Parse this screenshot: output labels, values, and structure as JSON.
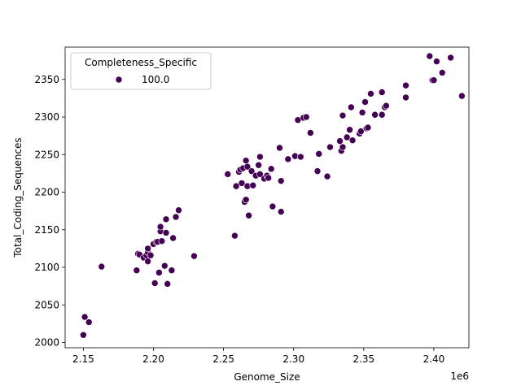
{
  "chart_data": {
    "type": "scatter",
    "title": "",
    "xlabel": "Genome_Size",
    "ylabel": "Total_Coding_Sequences",
    "x_offset_label": "1e6",
    "xlim": [
      2.137,
      2.425
    ],
    "ylim": [
      1993,
      2393
    ],
    "x_ticks": [
      2.15,
      2.2,
      2.25,
      2.3,
      2.35,
      2.4
    ],
    "x_tick_labels": [
      "2.15",
      "2.20",
      "2.25",
      "2.30",
      "2.35",
      "2.40"
    ],
    "y_ticks": [
      2000,
      2050,
      2100,
      2150,
      2200,
      2250,
      2300,
      2350
    ],
    "y_tick_labels": [
      "2000",
      "2050",
      "2100",
      "2150",
      "2200",
      "2250",
      "2300",
      "2350"
    ],
    "grid": false,
    "legend": {
      "title": "Completeness_Specific",
      "placement": "top-left",
      "entries": [
        {
          "label": "100.0",
          "color": "#440154"
        }
      ]
    },
    "series": [
      {
        "name": "100.0",
        "color": "#440154",
        "points": [
          [
            2.15,
            2010
          ],
          [
            2.151,
            2034
          ],
          [
            2.154,
            2027
          ],
          [
            2.163,
            2101
          ],
          [
            2.188,
            2096
          ],
          [
            2.189,
            2118
          ],
          [
            2.19,
            2117
          ],
          [
            2.193,
            2113
          ],
          [
            2.195,
            2116
          ],
          [
            2.196,
            2108
          ],
          [
            2.196,
            2120
          ],
          [
            2.196,
            2125
          ],
          [
            2.198,
            2116
          ],
          [
            2.2,
            2131
          ],
          [
            2.201,
            2079
          ],
          [
            2.202,
            2134
          ],
          [
            2.203,
            2134
          ],
          [
            2.204,
            2093
          ],
          [
            2.205,
            2148
          ],
          [
            2.205,
            2154
          ],
          [
            2.206,
            2135
          ],
          [
            2.208,
            2102
          ],
          [
            2.209,
            2164
          ],
          [
            2.209,
            2146
          ],
          [
            2.21,
            2078
          ],
          [
            2.213,
            2096
          ],
          [
            2.214,
            2139
          ],
          [
            2.216,
            2167
          ],
          [
            2.218,
            2176
          ],
          [
            2.229,
            2115
          ],
          [
            2.253,
            2224
          ],
          [
            2.258,
            2142
          ],
          [
            2.259,
            2208
          ],
          [
            2.261,
            2227
          ],
          [
            2.262,
            2230
          ],
          [
            2.263,
            2212
          ],
          [
            2.264,
            2232
          ],
          [
            2.265,
            2187
          ],
          [
            2.266,
            2190
          ],
          [
            2.266,
            2242
          ],
          [
            2.267,
            2208
          ],
          [
            2.267,
            2234
          ],
          [
            2.268,
            2169
          ],
          [
            2.27,
            2228
          ],
          [
            2.271,
            2209
          ],
          [
            2.273,
            2222
          ],
          [
            2.275,
            2236
          ],
          [
            2.276,
            2247
          ],
          [
            2.276,
            2224
          ],
          [
            2.279,
            2218
          ],
          [
            2.281,
            2222
          ],
          [
            2.282,
            2219
          ],
          [
            2.284,
            2231
          ],
          [
            2.285,
            2181
          ],
          [
            2.29,
            2259
          ],
          [
            2.291,
            2174
          ],
          [
            2.291,
            2215
          ],
          [
            2.296,
            2244
          ],
          [
            2.301,
            2248
          ],
          [
            2.303,
            2296
          ],
          [
            2.305,
            2247
          ],
          [
            2.307,
            2299
          ],
          [
            2.309,
            2300
          ],
          [
            2.312,
            2279
          ],
          [
            2.317,
            2228
          ],
          [
            2.318,
            2251
          ],
          [
            2.324,
            2221
          ],
          [
            2.326,
            2260
          ],
          [
            2.333,
            2268
          ],
          [
            2.334,
            2255
          ],
          [
            2.335,
            2302
          ],
          [
            2.335,
            2260
          ],
          [
            2.338,
            2273
          ],
          [
            2.34,
            2283
          ],
          [
            2.341,
            2313
          ],
          [
            2.342,
            2269
          ],
          [
            2.347,
            2278
          ],
          [
            2.348,
            2281
          ],
          [
            2.349,
            2306
          ],
          [
            2.351,
            2320
          ],
          [
            2.352,
            2285
          ],
          [
            2.353,
            2286
          ],
          [
            2.355,
            2331
          ],
          [
            2.358,
            2303
          ],
          [
            2.363,
            2333
          ],
          [
            2.363,
            2303
          ],
          [
            2.365,
            2313
          ],
          [
            2.366,
            2315
          ],
          [
            2.38,
            2342
          ],
          [
            2.38,
            2326
          ],
          [
            2.397,
            2381
          ],
          [
            2.399,
            2349
          ],
          [
            2.4,
            2349
          ],
          [
            2.402,
            2374
          ],
          [
            2.406,
            2359
          ],
          [
            2.412,
            2379
          ],
          [
            2.42,
            2328
          ]
        ]
      }
    ]
  }
}
